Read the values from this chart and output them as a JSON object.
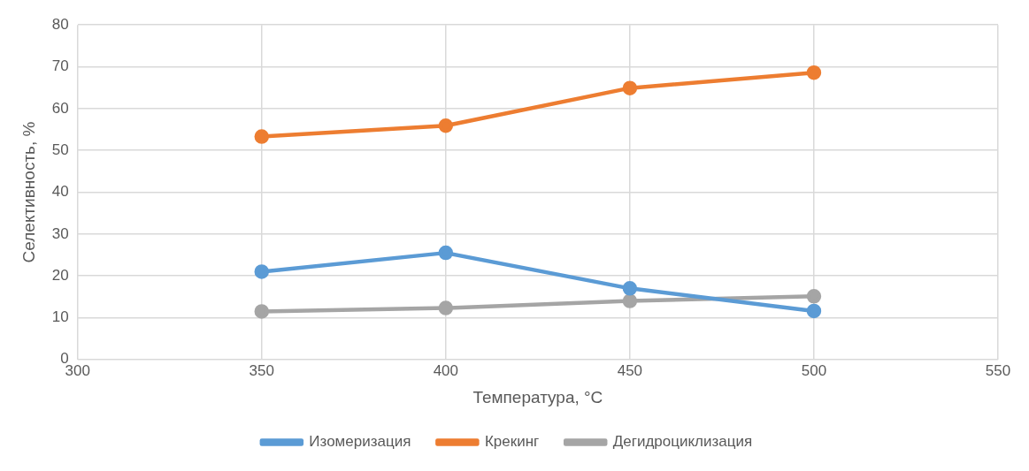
{
  "chart_data": {
    "type": "line",
    "xlabel": "Температура, °C",
    "ylabel": "Селективность, %",
    "x": [
      350,
      400,
      450,
      500
    ],
    "series": [
      {
        "name": "Изомеризация",
        "color": "#5b9bd5",
        "values": [
          21.0,
          25.5,
          17.0,
          11.6
        ]
      },
      {
        "name": "Крекинг",
        "color": "#ed7d31",
        "values": [
          53.3,
          55.9,
          64.9,
          68.6
        ]
      },
      {
        "name": "Дегидроциклизация",
        "color": "#a5a5a5",
        "values": [
          11.5,
          12.3,
          14.0,
          15.1
        ]
      }
    ],
    "xlim": [
      300,
      550
    ],
    "xticks": [
      300,
      350,
      400,
      450,
      500,
      550
    ],
    "ylim": [
      0,
      80
    ],
    "yticks": [
      0,
      10,
      20,
      30,
      40,
      50,
      60,
      70,
      80
    ],
    "grid": true,
    "legend": "bottom",
    "marker": "circle",
    "line_style": "solid"
  }
}
